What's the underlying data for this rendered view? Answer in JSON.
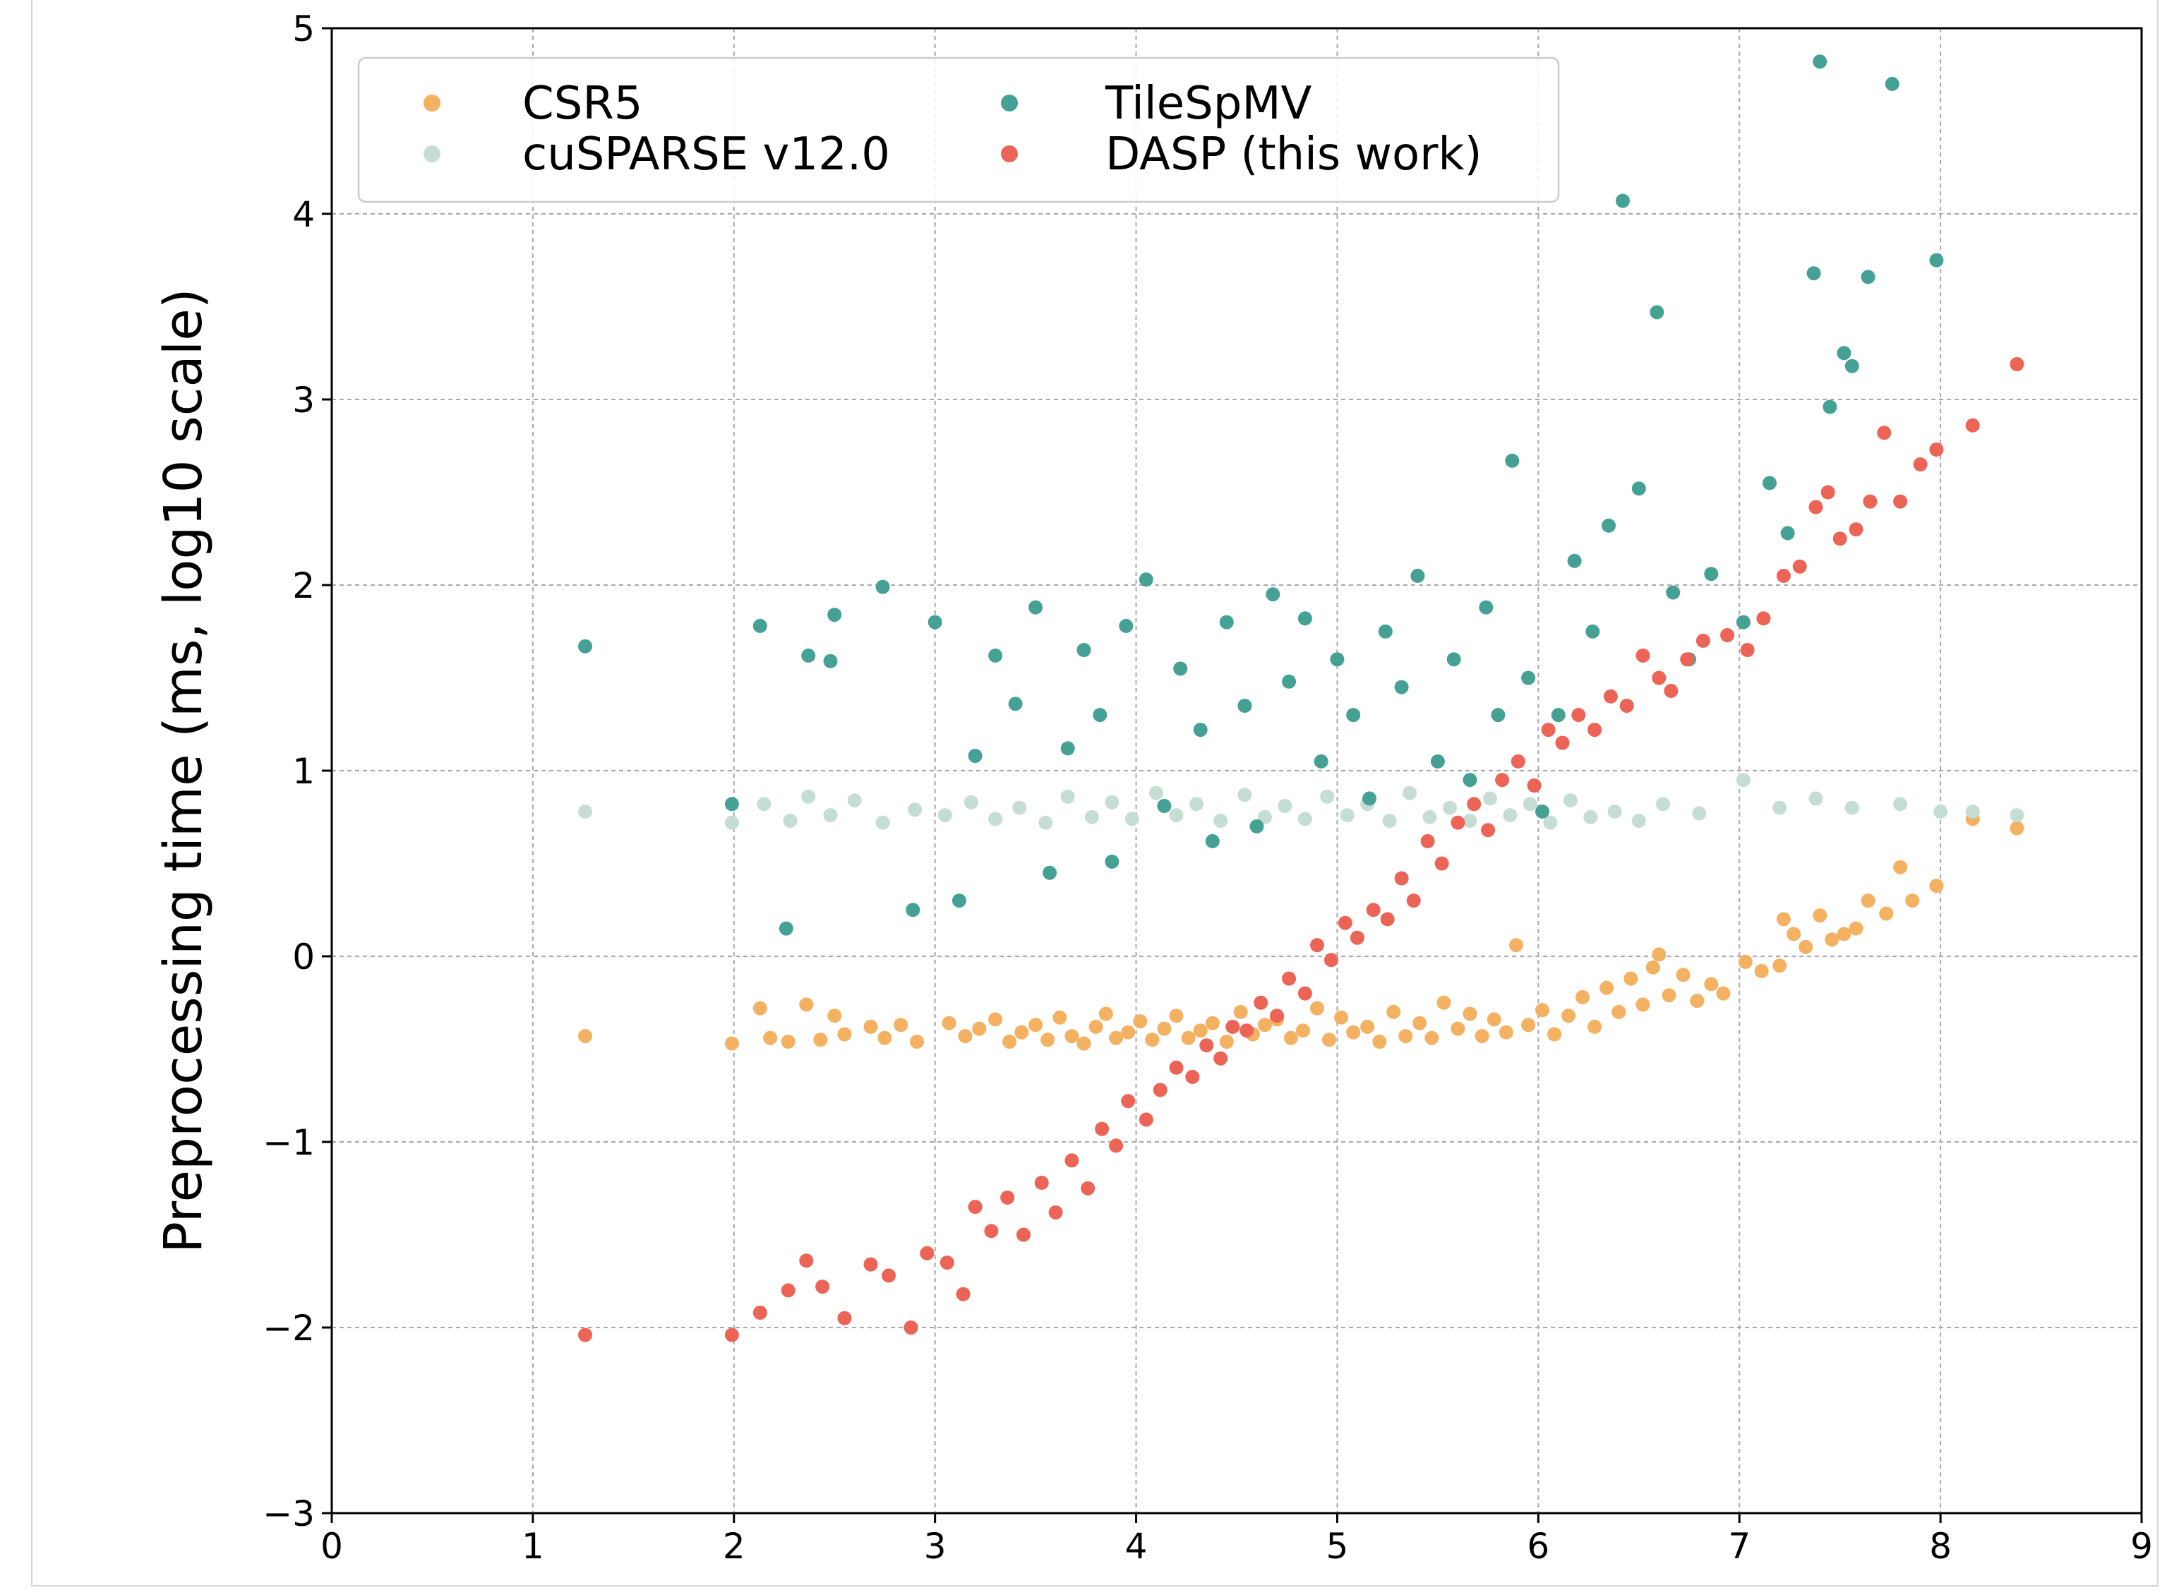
{
  "chart_data": {
    "type": "scatter",
    "title": "",
    "xlabel": "",
    "ylabel": "Preprocessing time (ms, log10 scale)",
    "xlim": [
      0,
      9
    ],
    "ylim": [
      -3,
      5
    ],
    "xticks": [
      0,
      1,
      2,
      3,
      4,
      5,
      6,
      7,
      8,
      9
    ],
    "yticks": [
      -3,
      -2,
      -1,
      0,
      1,
      2,
      3,
      4,
      5
    ],
    "xtick_labels": [
      "0",
      "1",
      "2",
      "3",
      "4",
      "5",
      "6",
      "7",
      "8",
      "9"
    ],
    "ytick_labels": [
      "−3",
      "−2",
      "−1",
      "0",
      "1",
      "2",
      "3",
      "4",
      "5"
    ],
    "grid": true,
    "legend": {
      "placement": "top-left",
      "columns": 2
    },
    "series": [
      {
        "name": "CSR5",
        "color": "#f4b162",
        "points": [
          [
            1.26,
            -0.43
          ],
          [
            1.99,
            -0.47
          ],
          [
            2.13,
            -0.28
          ],
          [
            2.18,
            -0.44
          ],
          [
            2.27,
            -0.46
          ],
          [
            2.36,
            -0.26
          ],
          [
            2.43,
            -0.45
          ],
          [
            2.5,
            -0.32
          ],
          [
            2.55,
            -0.42
          ],
          [
            2.68,
            -0.38
          ],
          [
            2.75,
            -0.44
          ],
          [
            2.83,
            -0.37
          ],
          [
            2.91,
            -0.46
          ],
          [
            3.07,
            -0.36
          ],
          [
            3.15,
            -0.43
          ],
          [
            3.22,
            -0.39
          ],
          [
            3.3,
            -0.34
          ],
          [
            3.37,
            -0.46
          ],
          [
            3.43,
            -0.41
          ],
          [
            3.5,
            -0.37
          ],
          [
            3.56,
            -0.45
          ],
          [
            3.62,
            -0.33
          ],
          [
            3.68,
            -0.43
          ],
          [
            3.74,
            -0.47
          ],
          [
            3.8,
            -0.38
          ],
          [
            3.85,
            -0.31
          ],
          [
            3.9,
            -0.44
          ],
          [
            3.96,
            -0.41
          ],
          [
            4.02,
            -0.35
          ],
          [
            4.08,
            -0.45
          ],
          [
            4.14,
            -0.39
          ],
          [
            4.2,
            -0.32
          ],
          [
            4.26,
            -0.44
          ],
          [
            4.32,
            -0.4
          ],
          [
            4.38,
            -0.36
          ],
          [
            4.45,
            -0.46
          ],
          [
            4.52,
            -0.3
          ],
          [
            4.58,
            -0.42
          ],
          [
            4.64,
            -0.37
          ],
          [
            4.7,
            -0.34
          ],
          [
            4.77,
            -0.44
          ],
          [
            4.83,
            -0.4
          ],
          [
            4.9,
            -0.28
          ],
          [
            4.96,
            -0.45
          ],
          [
            5.02,
            -0.33
          ],
          [
            5.08,
            -0.41
          ],
          [
            5.15,
            -0.38
          ],
          [
            5.21,
            -0.46
          ],
          [
            5.28,
            -0.3
          ],
          [
            5.34,
            -0.43
          ],
          [
            5.41,
            -0.36
          ],
          [
            5.47,
            -0.44
          ],
          [
            5.53,
            -0.25
          ],
          [
            5.6,
            -0.39
          ],
          [
            5.66,
            -0.31
          ],
          [
            5.72,
            -0.43
          ],
          [
            5.78,
            -0.34
          ],
          [
            5.84,
            -0.41
          ],
          [
            5.89,
            0.06
          ],
          [
            5.95,
            -0.37
          ],
          [
            6.02,
            -0.29
          ],
          [
            6.08,
            -0.42
          ],
          [
            6.15,
            -0.32
          ],
          [
            6.22,
            -0.22
          ],
          [
            6.28,
            -0.38
          ],
          [
            6.34,
            -0.17
          ],
          [
            6.4,
            -0.3
          ],
          [
            6.46,
            -0.12
          ],
          [
            6.52,
            -0.26
          ],
          [
            6.57,
            -0.06
          ],
          [
            6.6,
            0.01
          ],
          [
            6.65,
            -0.21
          ],
          [
            6.72,
            -0.1
          ],
          [
            6.79,
            -0.24
          ],
          [
            6.86,
            -0.15
          ],
          [
            6.92,
            -0.2
          ],
          [
            7.03,
            -0.03
          ],
          [
            7.11,
            -0.08
          ],
          [
            7.2,
            -0.05
          ],
          [
            7.22,
            0.2
          ],
          [
            7.27,
            0.12
          ],
          [
            7.33,
            0.05
          ],
          [
            7.4,
            0.22
          ],
          [
            7.46,
            0.09
          ],
          [
            7.52,
            0.12
          ],
          [
            7.58,
            0.15
          ],
          [
            7.64,
            0.3
          ],
          [
            7.73,
            0.23
          ],
          [
            7.8,
            0.48
          ],
          [
            7.86,
            0.3
          ],
          [
            7.98,
            0.38
          ],
          [
            8.16,
            0.74
          ],
          [
            8.38,
            0.69
          ]
        ]
      },
      {
        "name": "cuSPARSE v12.0",
        "color": "#c5ddd3",
        "points": [
          [
            1.26,
            0.78
          ],
          [
            1.99,
            0.72
          ],
          [
            2.15,
            0.82
          ],
          [
            2.28,
            0.73
          ],
          [
            2.37,
            0.86
          ],
          [
            2.48,
            0.76
          ],
          [
            2.6,
            0.84
          ],
          [
            2.74,
            0.72
          ],
          [
            2.9,
            0.79
          ],
          [
            3.05,
            0.76
          ],
          [
            3.18,
            0.83
          ],
          [
            3.3,
            0.74
          ],
          [
            3.42,
            0.8
          ],
          [
            3.55,
            0.72
          ],
          [
            3.66,
            0.86
          ],
          [
            3.78,
            0.75
          ],
          [
            3.88,
            0.83
          ],
          [
            3.98,
            0.74
          ],
          [
            4.1,
            0.88
          ],
          [
            4.2,
            0.76
          ],
          [
            4.3,
            0.82
          ],
          [
            4.42,
            0.73
          ],
          [
            4.54,
            0.87
          ],
          [
            4.64,
            0.75
          ],
          [
            4.74,
            0.81
          ],
          [
            4.84,
            0.74
          ],
          [
            4.95,
            0.86
          ],
          [
            5.05,
            0.76
          ],
          [
            5.15,
            0.82
          ],
          [
            5.26,
            0.73
          ],
          [
            5.36,
            0.88
          ],
          [
            5.46,
            0.75
          ],
          [
            5.56,
            0.8
          ],
          [
            5.66,
            0.73
          ],
          [
            5.76,
            0.85
          ],
          [
            5.86,
            0.76
          ],
          [
            5.96,
            0.82
          ],
          [
            6.06,
            0.72
          ],
          [
            6.16,
            0.84
          ],
          [
            6.26,
            0.75
          ],
          [
            6.38,
            0.78
          ],
          [
            6.5,
            0.73
          ],
          [
            6.62,
            0.82
          ],
          [
            6.8,
            0.77
          ],
          [
            7.02,
            0.95
          ],
          [
            7.2,
            0.8
          ],
          [
            7.38,
            0.85
          ],
          [
            7.56,
            0.8
          ],
          [
            7.8,
            0.82
          ],
          [
            8.0,
            0.78
          ],
          [
            8.16,
            0.78
          ],
          [
            8.38,
            0.76
          ]
        ]
      },
      {
        "name": "TileSpMV",
        "color": "#46a195",
        "points": [
          [
            1.26,
            1.67
          ],
          [
            1.99,
            0.82
          ],
          [
            2.13,
            1.78
          ],
          [
            2.26,
            0.15
          ],
          [
            2.37,
            1.62
          ],
          [
            2.48,
            1.59
          ],
          [
            2.5,
            1.84
          ],
          [
            2.74,
            1.99
          ],
          [
            2.89,
            0.25
          ],
          [
            3.0,
            1.8
          ],
          [
            3.12,
            0.3
          ],
          [
            3.2,
            1.08
          ],
          [
            3.3,
            1.62
          ],
          [
            3.4,
            1.36
          ],
          [
            3.5,
            1.88
          ],
          [
            3.57,
            0.45
          ],
          [
            3.66,
            1.12
          ],
          [
            3.74,
            1.65
          ],
          [
            3.82,
            1.3
          ],
          [
            3.88,
            0.51
          ],
          [
            3.95,
            1.78
          ],
          [
            4.05,
            2.03
          ],
          [
            4.14,
            0.81
          ],
          [
            4.22,
            1.55
          ],
          [
            4.32,
            1.22
          ],
          [
            4.38,
            0.62
          ],
          [
            4.45,
            1.8
          ],
          [
            4.54,
            1.35
          ],
          [
            4.6,
            0.7
          ],
          [
            4.68,
            1.95
          ],
          [
            4.76,
            1.48
          ],
          [
            4.84,
            1.82
          ],
          [
            4.92,
            1.05
          ],
          [
            5.0,
            1.6
          ],
          [
            5.08,
            1.3
          ],
          [
            5.16,
            0.85
          ],
          [
            5.24,
            1.75
          ],
          [
            5.32,
            1.45
          ],
          [
            5.4,
            2.05
          ],
          [
            5.5,
            1.05
          ],
          [
            5.58,
            1.6
          ],
          [
            5.66,
            0.95
          ],
          [
            5.74,
            1.88
          ],
          [
            5.8,
            1.3
          ],
          [
            5.87,
            2.67
          ],
          [
            5.95,
            1.5
          ],
          [
            6.02,
            0.78
          ],
          [
            6.1,
            1.3
          ],
          [
            6.18,
            2.13
          ],
          [
            6.27,
            1.75
          ],
          [
            6.35,
            2.32
          ],
          [
            6.42,
            4.07
          ],
          [
            6.5,
            2.52
          ],
          [
            6.59,
            3.47
          ],
          [
            6.67,
            1.96
          ],
          [
            6.75,
            1.6
          ],
          [
            6.86,
            2.06
          ],
          [
            7.02,
            1.8
          ],
          [
            7.15,
            2.55
          ],
          [
            7.24,
            2.28
          ],
          [
            7.37,
            3.68
          ],
          [
            7.4,
            4.82
          ],
          [
            7.45,
            2.96
          ],
          [
            7.52,
            3.25
          ],
          [
            7.56,
            3.18
          ],
          [
            7.64,
            3.66
          ],
          [
            7.76,
            4.7
          ],
          [
            7.98,
            3.75
          ]
        ]
      },
      {
        "name": "DASP (this work)",
        "color": "#ec6455",
        "points": [
          [
            1.26,
            -2.04
          ],
          [
            1.99,
            -2.04
          ],
          [
            2.13,
            -1.92
          ],
          [
            2.27,
            -1.8
          ],
          [
            2.36,
            -1.64
          ],
          [
            2.44,
            -1.78
          ],
          [
            2.55,
            -1.95
          ],
          [
            2.68,
            -1.66
          ],
          [
            2.77,
            -1.72
          ],
          [
            2.88,
            -2.0
          ],
          [
            2.96,
            -1.6
          ],
          [
            3.06,
            -1.65
          ],
          [
            3.14,
            -1.82
          ],
          [
            3.2,
            -1.35
          ],
          [
            3.28,
            -1.48
          ],
          [
            3.36,
            -1.3
          ],
          [
            3.44,
            -1.5
          ],
          [
            3.53,
            -1.22
          ],
          [
            3.6,
            -1.38
          ],
          [
            3.68,
            -1.1
          ],
          [
            3.76,
            -1.25
          ],
          [
            3.83,
            -0.93
          ],
          [
            3.9,
            -1.02
          ],
          [
            3.96,
            -0.78
          ],
          [
            4.05,
            -0.88
          ],
          [
            4.12,
            -0.72
          ],
          [
            4.2,
            -0.6
          ],
          [
            4.28,
            -0.65
          ],
          [
            4.35,
            -0.48
          ],
          [
            4.42,
            -0.55
          ],
          [
            4.48,
            -0.38
          ],
          [
            4.55,
            -0.4
          ],
          [
            4.62,
            -0.25
          ],
          [
            4.7,
            -0.32
          ],
          [
            4.76,
            -0.12
          ],
          [
            4.84,
            -0.2
          ],
          [
            4.9,
            0.06
          ],
          [
            4.97,
            -0.02
          ],
          [
            5.04,
            0.18
          ],
          [
            5.1,
            0.1
          ],
          [
            5.18,
            0.25
          ],
          [
            5.25,
            0.2
          ],
          [
            5.32,
            0.42
          ],
          [
            5.38,
            0.3
          ],
          [
            5.45,
            0.62
          ],
          [
            5.52,
            0.5
          ],
          [
            5.6,
            0.72
          ],
          [
            5.68,
            0.82
          ],
          [
            5.75,
            0.68
          ],
          [
            5.82,
            0.95
          ],
          [
            5.9,
            1.05
          ],
          [
            5.98,
            0.92
          ],
          [
            6.05,
            1.22
          ],
          [
            6.12,
            1.15
          ],
          [
            6.2,
            1.3
          ],
          [
            6.28,
            1.22
          ],
          [
            6.36,
            1.4
          ],
          [
            6.44,
            1.35
          ],
          [
            6.52,
            1.62
          ],
          [
            6.6,
            1.5
          ],
          [
            6.66,
            1.43
          ],
          [
            6.74,
            1.6
          ],
          [
            6.82,
            1.7
          ],
          [
            6.94,
            1.73
          ],
          [
            7.04,
            1.65
          ],
          [
            7.12,
            1.82
          ],
          [
            7.22,
            2.05
          ],
          [
            7.3,
            2.1
          ],
          [
            7.38,
            2.42
          ],
          [
            7.44,
            2.5
          ],
          [
            7.5,
            2.25
          ],
          [
            7.58,
            2.3
          ],
          [
            7.65,
            2.45
          ],
          [
            7.72,
            2.82
          ],
          [
            7.8,
            2.45
          ],
          [
            7.9,
            2.65
          ],
          [
            7.98,
            2.73
          ],
          [
            8.16,
            2.86
          ],
          [
            8.38,
            3.19
          ]
        ]
      }
    ]
  }
}
